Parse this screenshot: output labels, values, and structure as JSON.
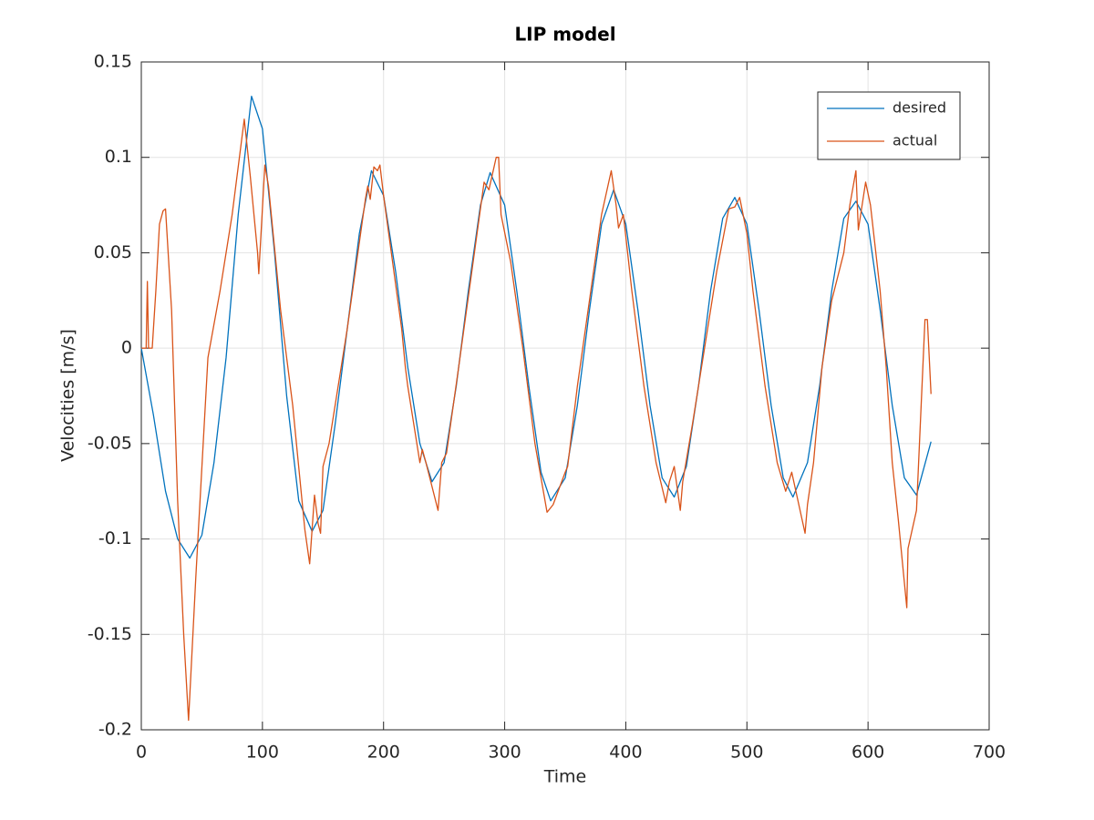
{
  "chart_data": {
    "type": "line",
    "title": "LIP model",
    "x_label": "Time",
    "y_label": "Velocities [m/s]",
    "xlim": [
      0,
      700
    ],
    "xticks": [
      0,
      100,
      200,
      300,
      400,
      500,
      600,
      700
    ],
    "ylim": [
      -0.2,
      0.15
    ],
    "yticks": [
      0.15,
      0.1,
      0.05,
      0,
      -0.05,
      -0.1,
      -0.15,
      -0.2
    ],
    "grid": true,
    "legend": "upper-right",
    "series": [
      {
        "name": "desired",
        "color": "#0072bd",
        "x": [
          0,
          10,
          20,
          30,
          40,
          50,
          60,
          70,
          80,
          91,
          100,
          110,
          120,
          130,
          141,
          150,
          160,
          170,
          180,
          190,
          200,
          210,
          220,
          230,
          240,
          250,
          260,
          270,
          280,
          288,
          300,
          310,
          320,
          330,
          338,
          350,
          360,
          370,
          380,
          390,
          400,
          410,
          420,
          430,
          440,
          450,
          460,
          470,
          480,
          490,
          500,
          510,
          520,
          530,
          538,
          550,
          560,
          570,
          580,
          590,
          600,
          610,
          620,
          630,
          640,
          652
        ],
        "values": [
          0,
          -0.035,
          -0.075,
          -0.1,
          -0.11,
          -0.098,
          -0.06,
          -0.005,
          0.07,
          0.132,
          0.115,
          0.05,
          -0.025,
          -0.08,
          -0.096,
          -0.085,
          -0.04,
          0.01,
          0.06,
          0.093,
          0.08,
          0.04,
          -0.01,
          -0.05,
          -0.07,
          -0.06,
          -0.02,
          0.03,
          0.075,
          0.092,
          0.075,
          0.03,
          -0.02,
          -0.065,
          -0.08,
          -0.068,
          -0.03,
          0.02,
          0.065,
          0.083,
          0.065,
          0.02,
          -0.03,
          -0.068,
          -0.078,
          -0.062,
          -0.02,
          0.03,
          0.068,
          0.079,
          0.065,
          0.02,
          -0.03,
          -0.068,
          -0.078,
          -0.06,
          -0.02,
          0.03,
          0.068,
          0.077,
          0.065,
          0.02,
          -0.03,
          -0.068,
          -0.077,
          -0.049
        ]
      },
      {
        "name": "actual",
        "color": "#d95319",
        "x": [
          0,
          4,
          5,
          6,
          9,
          12,
          15,
          18,
          20,
          25,
          30,
          35,
          39,
          45,
          55,
          65,
          75,
          85,
          90,
          96,
          97,
          102,
          105,
          115,
          125,
          135,
          139,
          143,
          146,
          148,
          150,
          155,
          170,
          185,
          187,
          189,
          192,
          195,
          197,
          200,
          215,
          218,
          220,
          230,
          232,
          235,
          245,
          248,
          252,
          262,
          275,
          283,
          287,
          293,
          295,
          297,
          305,
          315,
          325,
          335,
          340,
          350,
          352,
          360,
          370,
          380,
          388,
          392,
          394,
          398,
          405,
          415,
          425,
          433,
          436,
          440,
          445,
          447,
          455,
          465,
          475,
          485,
          490,
          494,
          500,
          505,
          515,
          525,
          532,
          537,
          548,
          550,
          555,
          562,
          570,
          580,
          585,
          590,
          592,
          598,
          602,
          610,
          615,
          620,
          625,
          632,
          633,
          640,
          647,
          649,
          652
        ],
        "values": [
          0,
          0,
          0.035,
          0,
          0,
          0.03,
          0.065,
          0.072,
          0.073,
          0.02,
          -0.08,
          -0.15,
          -0.195,
          -0.12,
          -0.005,
          0.03,
          0.07,
          0.12,
          0.09,
          0.05,
          0.039,
          0.096,
          0.085,
          0.02,
          -0.03,
          -0.095,
          -0.113,
          -0.077,
          -0.092,
          -0.097,
          -0.062,
          -0.05,
          0.01,
          0.078,
          0.085,
          0.078,
          0.095,
          0.093,
          0.096,
          0.08,
          0.01,
          -0.01,
          -0.02,
          -0.06,
          -0.053,
          -0.06,
          -0.085,
          -0.06,
          -0.055,
          -0.01,
          0.05,
          0.087,
          0.083,
          0.1,
          0.1,
          0.07,
          0.045,
          0,
          -0.05,
          -0.086,
          -0.082,
          -0.065,
          -0.062,
          -0.02,
          0.025,
          0.07,
          0.093,
          0.075,
          0.063,
          0.07,
          0.03,
          -0.02,
          -0.06,
          -0.081,
          -0.07,
          -0.062,
          -0.085,
          -0.07,
          -0.04,
          0,
          0.04,
          0.073,
          0.074,
          0.079,
          0.06,
          0.03,
          -0.02,
          -0.06,
          -0.075,
          -0.065,
          -0.097,
          -0.082,
          -0.06,
          -0.01,
          0.025,
          0.05,
          0.075,
          0.093,
          0.062,
          0.087,
          0.075,
          0.03,
          -0.01,
          -0.06,
          -0.09,
          -0.136,
          -0.105,
          -0.085,
          0.015,
          0.015,
          -0.024
        ]
      }
    ]
  }
}
